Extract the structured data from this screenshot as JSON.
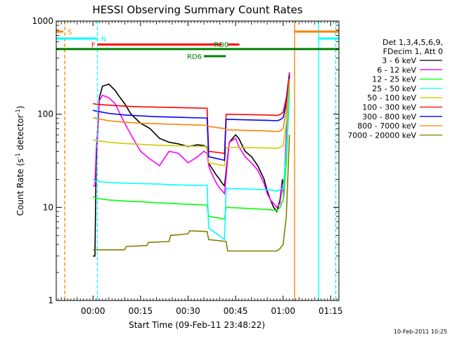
{
  "chart_data": {
    "type": "line",
    "title": "HESSI Observing Summary Count Rates",
    "xlabel": "Start Time (09-Feb-11 23:48:22)",
    "ylabel_parts": [
      "Count Rate (s",
      "-1",
      " detector",
      "-1",
      ")"
    ],
    "y_scale": "log",
    "ylim": [
      1,
      1000
    ],
    "y_ticks": [
      {
        "value": 1,
        "label": "1"
      },
      {
        "value": 10,
        "label": "10"
      },
      {
        "value": 100,
        "label": "100"
      },
      {
        "value": 1000,
        "label": "1000"
      }
    ],
    "xlim_min": [
      -11.6,
      77.6
    ],
    "x_ticks": [
      {
        "value": 0,
        "label": "00:00"
      },
      {
        "value": 15,
        "label": "00:15"
      },
      {
        "value": 30,
        "label": "00:30"
      },
      {
        "value": 45,
        "label": "00:45"
      },
      {
        "value": 60,
        "label": "01:00"
      },
      {
        "value": 75,
        "label": "01:15"
      }
    ],
    "legend_header": [
      "Det 1,3,4,5,6,9,",
      "FDecim 1, Att 0"
    ],
    "legend_placement": "right",
    "series": [
      {
        "name": "3 - 6 keV",
        "color": "#000000",
        "x": [
          0,
          0.6,
          1,
          2,
          3,
          5,
          7,
          8,
          10,
          12,
          15,
          18,
          21,
          24,
          27,
          30,
          33,
          35,
          36,
          36.5,
          37,
          39,
          40,
          40.8,
          41.5,
          43,
          45,
          46,
          48,
          50,
          52,
          54,
          55,
          56,
          57,
          58,
          59,
          59.8,
          60.2,
          61,
          62
        ],
        "y": [
          3,
          3,
          30,
          150,
          200,
          210,
          180,
          160,
          130,
          100,
          80,
          70,
          55,
          50,
          48,
          45,
          47,
          46,
          44,
          30,
          28,
          22,
          20,
          18,
          17,
          50,
          60,
          55,
          40,
          35,
          28,
          20,
          15,
          12,
          10,
          9,
          12,
          20,
          13,
          60,
          280
        ]
      },
      {
        "name": "6 - 12 keV",
        "color": "#ff00ff",
        "x": [
          0,
          0.6,
          1,
          2,
          3,
          5,
          7,
          8,
          10,
          12,
          15,
          18,
          21,
          24,
          27,
          30,
          33,
          35,
          36,
          36.5,
          37,
          39,
          40,
          40.8,
          41.5,
          43,
          45,
          46,
          48,
          50,
          52,
          54,
          55,
          56,
          57,
          58,
          59,
          59.8,
          60.2,
          61,
          62
        ],
        "y": [
          17,
          17,
          40,
          140,
          160,
          150,
          130,
          110,
          80,
          60,
          40,
          33,
          28,
          40,
          38,
          30,
          35,
          40,
          38,
          28,
          25,
          18,
          16,
          15,
          14,
          50,
          55,
          45,
          35,
          30,
          25,
          18,
          14,
          12,
          11,
          10,
          11,
          18,
          13,
          60,
          280
        ]
      },
      {
        "name": "12 - 25 keV",
        "color": "#00ff00",
        "x": [
          0,
          1,
          5,
          10,
          15,
          20,
          25,
          30,
          36,
          36.5,
          41.5,
          42,
          55,
          58,
          59,
          60,
          61,
          62
        ],
        "y": [
          13,
          12.5,
          12,
          11.7,
          11.5,
          11.2,
          11,
          10.8,
          10.6,
          8,
          7.5,
          10,
          9.5,
          9.2,
          10,
          12,
          30,
          180
        ]
      },
      {
        "name": "25 - 50 keV",
        "color": "#00ffff",
        "x": [
          0,
          1,
          5,
          10,
          15,
          20,
          25,
          30,
          36,
          36.5,
          41.5,
          42,
          55,
          58,
          59,
          60,
          61,
          62
        ],
        "y": [
          20,
          19,
          18.5,
          18.2,
          18,
          17.8,
          17.5,
          17.3,
          17.2,
          6,
          4.5,
          16,
          15.5,
          15,
          15.5,
          16,
          40,
          200
        ]
      },
      {
        "name": "50 - 100 keV",
        "color": "#cccc00",
        "x": [
          0,
          1,
          5,
          10,
          15,
          20,
          25,
          30,
          36,
          36.5,
          41.5,
          42,
          55,
          58,
          59,
          60,
          61,
          62
        ],
        "y": [
          53,
          52,
          50,
          48.5,
          47.5,
          46.5,
          46,
          45.5,
          45,
          30,
          28,
          44,
          43.5,
          43,
          44,
          46,
          80,
          230
        ]
      },
      {
        "name": "100 - 300 keV",
        "color": "#ff0000",
        "x": [
          0,
          1,
          5,
          10,
          15,
          20,
          25,
          30,
          36,
          36.5,
          41.5,
          42,
          55,
          58,
          59,
          60,
          61,
          62
        ],
        "y": [
          130,
          128,
          125,
          122,
          120,
          119,
          118,
          117,
          116,
          40,
          38,
          100,
          98,
          97,
          99,
          105,
          150,
          280
        ]
      },
      {
        "name": "300 - 800 keV",
        "color": "#0000ff",
        "x": [
          0,
          1,
          5,
          10,
          15,
          20,
          25,
          30,
          36,
          36.5,
          41.5,
          42,
          55,
          58,
          59,
          60,
          61,
          62
        ],
        "y": [
          110,
          108,
          102,
          98,
          96,
          94,
          93,
          92,
          91,
          35,
          32,
          88,
          86,
          85,
          87,
          92,
          130,
          260
        ]
      },
      {
        "name": "800 - 7000 keV",
        "color": "#ff8000",
        "x": [
          0,
          1,
          5,
          10,
          15,
          20,
          25,
          30,
          36,
          36.5,
          41.5,
          42,
          55,
          58,
          59,
          60,
          61,
          62
        ],
        "y": [
          92,
          90,
          85,
          82,
          80,
          79,
          78,
          77,
          76,
          74,
          70,
          68,
          66,
          65,
          66,
          70,
          110,
          240
        ]
      },
      {
        "name": "7000 - 20000 keV",
        "color": "#808000",
        "x": [
          0,
          4,
          4.5,
          10,
          10.5,
          17,
          17.5,
          24,
          24.5,
          30,
          30.5,
          36,
          36.5,
          42,
          42.5,
          58,
          59,
          60,
          61,
          62
        ],
        "y": [
          3.5,
          3.5,
          3.5,
          3.5,
          3.8,
          3.9,
          4.2,
          4.3,
          5,
          5.2,
          5.6,
          5.5,
          4.5,
          4.3,
          3.4,
          3.4,
          3.6,
          4,
          8,
          60
        ]
      }
    ],
    "annotations": {
      "intervals": [
        {
          "label": "S",
          "color": "#ff8000",
          "x_start": -11.6,
          "x_end": -9.4,
          "y": 770
        },
        {
          "label": "N",
          "color": "#00ffff",
          "x_start": -11.6,
          "x_end": 1.4,
          "y": 650
        },
        {
          "label": "",
          "color": "#00ffff",
          "x_start": 71.2,
          "x_end": 77.6,
          "y": 650
        },
        {
          "label": "F",
          "color": "#ff0000",
          "x_start": 1.4,
          "x_end": 40.7,
          "y": 560
        },
        {
          "label": "",
          "color": "#ff0000",
          "x_start": 42.5,
          "x_end": 46.2,
          "y": 560
        },
        {
          "label": "RD0",
          "color": "#008000",
          "x_start": -11.6,
          "x_end": 77.6,
          "y": 500
        },
        {
          "label": "RD6",
          "color": "#008000",
          "x_start": 35,
          "x_end": 41.9,
          "y": 420
        },
        {
          "label": "",
          "color": "#ff8000",
          "x_start": 63.6,
          "x_end": 77.6,
          "y": 770
        }
      ],
      "vlines": [
        {
          "x": -8.9,
          "color": "#ff8000",
          "style": "dashed"
        },
        {
          "x": 1.4,
          "color": "#00ffff",
          "style": "dashed"
        },
        {
          "x": 63.6,
          "color": "#ff8000",
          "style": "solid"
        },
        {
          "x": 71.2,
          "color": "#00ffff",
          "style": "solid"
        },
        {
          "x": 76.6,
          "color": "#ff8000",
          "style": "dashed"
        },
        {
          "x": 76.6,
          "color": "#00ffff",
          "style": "dashed"
        }
      ]
    },
    "footer_date": "10-Feb-2011 10:25"
  }
}
